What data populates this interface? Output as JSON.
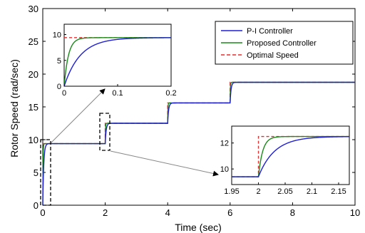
{
  "chart_data": {
    "type": "line",
    "xlabel": "Time (sec)",
    "ylabel": "Rotor Speed (rad/sec)",
    "xlim": [
      0,
      10
    ],
    "ylim": [
      0,
      30
    ],
    "xticks": [
      "0",
      "2",
      "4",
      "6",
      "8",
      "10"
    ],
    "yticks": [
      "0",
      "5",
      "10",
      "15",
      "20",
      "25",
      "30"
    ],
    "legend_position": "top-right",
    "steps": [
      {
        "t": 0,
        "level": 9.4
      },
      {
        "t": 2,
        "level": 12.5
      },
      {
        "t": 4,
        "level": 15.6
      },
      {
        "t": 6,
        "level": 18.75
      }
    ],
    "series": [
      {
        "name": "P-I Controller",
        "color": "#1f1fd6",
        "style": "solid",
        "tau": 0.03
      },
      {
        "name": "Proposed Controller",
        "color": "#1a8a1a",
        "style": "solid",
        "tau": 0.008
      },
      {
        "name": "Optimal Speed",
        "color": "#e03030",
        "style": "dashed",
        "tau": 0
      }
    ],
    "insets": [
      {
        "xlim": [
          0,
          0.2
        ],
        "ylim": [
          0,
          12
        ],
        "xticks": [
          "0",
          "0.1",
          "0.2"
        ],
        "yticks": [
          "0",
          "5",
          "10"
        ],
        "from_level": 0,
        "to_level": 9.4,
        "t0": 0
      },
      {
        "xlim": [
          1.95,
          2.17
        ],
        "ylim": [
          8.8,
          13.3
        ],
        "xticks": [
          "1.95",
          "2",
          "2.05",
          "2.1",
          "2.15"
        ],
        "yticks": [
          "10",
          "12"
        ],
        "from_level": 9.4,
        "to_level": 12.5,
        "t0": 2
      }
    ]
  }
}
